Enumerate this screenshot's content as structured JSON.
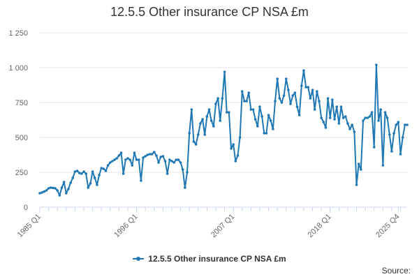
{
  "chart_data": {
    "type": "line",
    "title": "12.5.5 Other insurance CP NSA £m",
    "xlabel": "",
    "ylabel": "",
    "ylim": [
      0,
      1250
    ],
    "y_ticks": [
      0,
      250,
      500,
      750,
      1000,
      1250
    ],
    "y_tick_labels": [
      "0",
      "250",
      "500",
      "750",
      "1 000",
      "1 250"
    ],
    "x_tick_labels": [
      "1985 Q1",
      "1996 Q1",
      "2007 Q1",
      "2018 Q1",
      "2025 Q4"
    ],
    "x_tick_indices": [
      0,
      44,
      88,
      132,
      163
    ],
    "grid": true,
    "series": [
      {
        "name": "12.5.5 Other insurance CP NSA £m",
        "values": [
          100,
          105,
          112,
          120,
          135,
          140,
          138,
          135,
          120,
          85,
          140,
          180,
          100,
          130,
          175,
          210,
          255,
          260,
          245,
          240,
          255,
          240,
          140,
          170,
          255,
          210,
          160,
          230,
          280,
          275,
          260,
          300,
          320,
          330,
          340,
          350,
          370,
          390,
          240,
          340,
          350,
          340,
          300,
          390,
          340,
          340,
          190,
          355,
          365,
          375,
          380,
          380,
          395,
          370,
          320,
          360,
          365,
          330,
          240,
          340,
          330,
          320,
          340,
          340,
          320,
          270,
          140,
          250,
          530,
          700,
          470,
          450,
          520,
          600,
          630,
          520,
          650,
          700,
          620,
          580,
          740,
          780,
          620,
          780,
          970,
          680,
          680,
          420,
          450,
          330,
          370,
          500,
          830,
          760,
          760,
          820,
          700,
          700,
          630,
          580,
          720,
          650,
          530,
          530,
          660,
          620,
          560,
          760,
          920,
          780,
          750,
          800,
          920,
          840,
          740,
          800,
          820,
          720,
          660,
          870,
          980,
          860,
          860,
          780,
          840,
          700,
          830,
          760,
          640,
          610,
          570,
          780,
          640,
          770,
          630,
          720,
          600,
          720,
          640,
          650,
          600,
          560,
          590,
          540,
          160,
          310,
          270,
          620,
          640,
          640,
          650,
          680,
          430,
          1020,
          620,
          700,
          300,
          680,
          640,
          520,
          400,
          530,
          590,
          610,
          380,
          500,
          590,
          590
        ]
      }
    ],
    "legend": {
      "position": "bottom-center",
      "label": "12.5.5 Other insurance CP NSA £m"
    }
  },
  "source_label": "Source:",
  "colors": {
    "series": "#1f77b4",
    "grid": "#e6e6e6",
    "axis": "#ccd6eb",
    "tick_text": "#666666",
    "title_text": "#333333"
  }
}
